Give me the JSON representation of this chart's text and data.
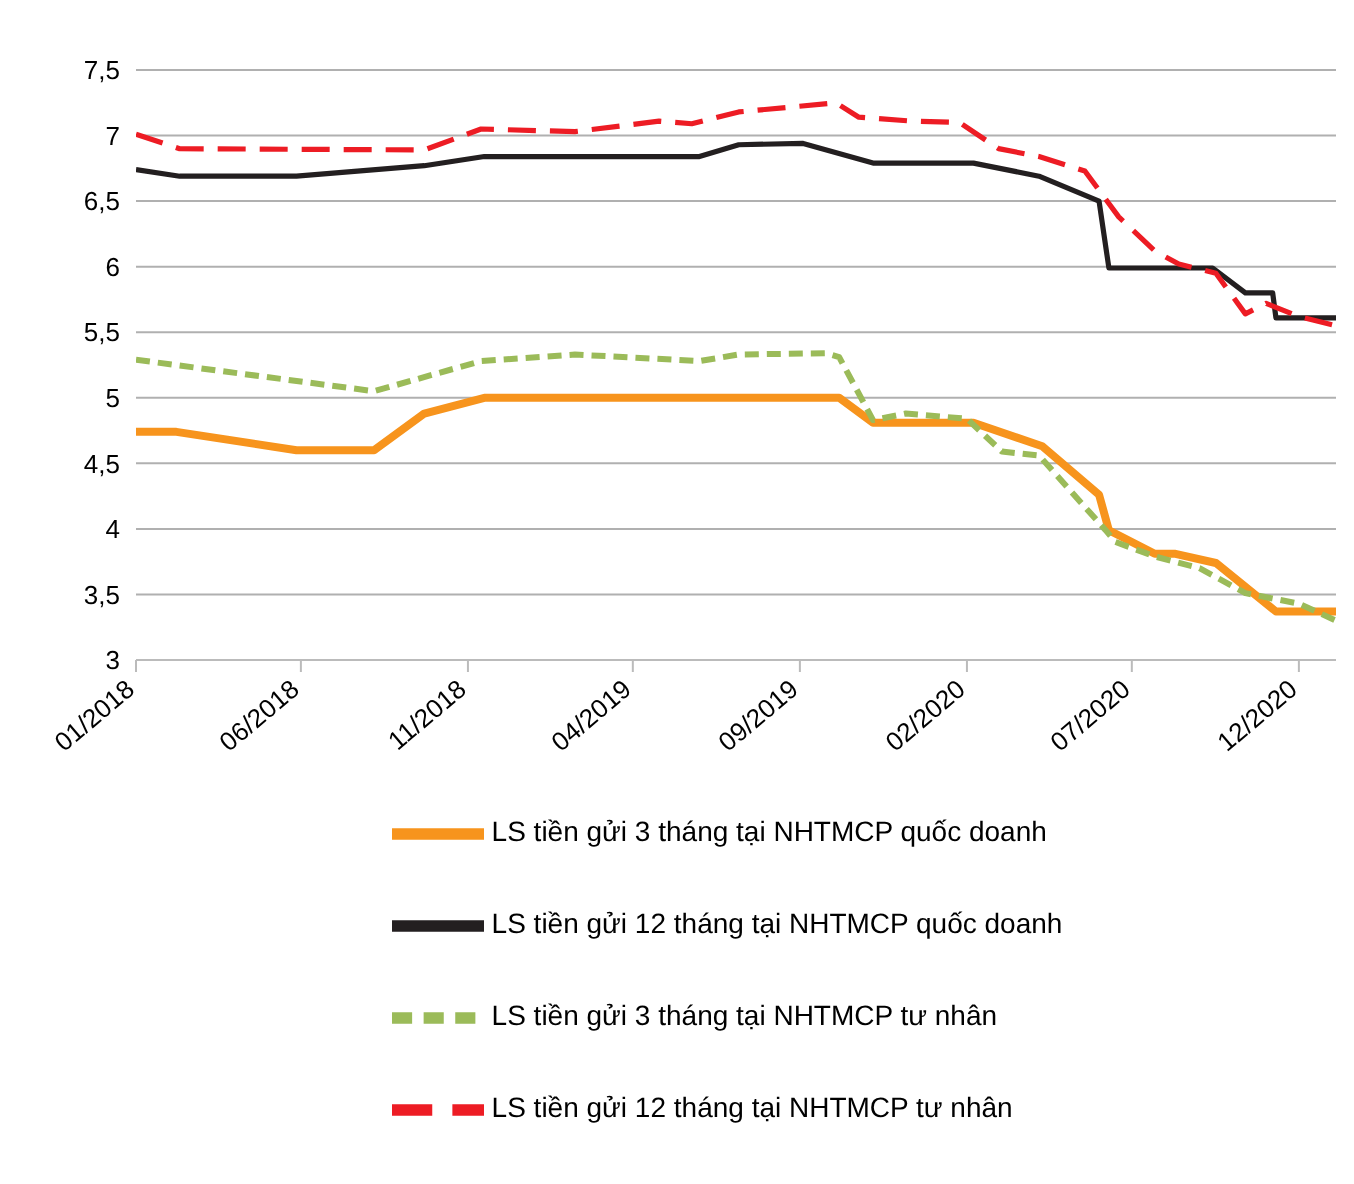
{
  "chart_data": {
    "type": "line",
    "xlim": [
      "2018-01-01",
      "2021-01-04"
    ],
    "xticks": [
      {
        "value": "2018-01-01",
        "label": "01/2018"
      },
      {
        "value": "2018-06-01",
        "label": "06/2018"
      },
      {
        "value": "2018-11-01",
        "label": "11/2018"
      },
      {
        "value": "2019-04-01",
        "label": "04/2019"
      },
      {
        "value": "2019-09-01",
        "label": "09/2019"
      },
      {
        "value": "2020-02-01",
        "label": "02/2020"
      },
      {
        "value": "2020-07-01",
        "label": "07/2020"
      },
      {
        "value": "2020-12-01",
        "label": "12/2020"
      }
    ],
    "ylim": [
      3,
      7.5
    ],
    "yticks": [
      3,
      {
        "value": 3.5,
        "label": "3,5"
      },
      4,
      {
        "value": 4.5,
        "label": "4,5"
      },
      5,
      {
        "value": 5.5,
        "label": "5,5"
      },
      6,
      {
        "value": 6.5,
        "label": "6,5"
      },
      7,
      {
        "value": 7.5,
        "label": "7,5"
      }
    ],
    "grid": "y",
    "legend": "bottom",
    "marker": "none",
    "series": [
      {
        "name": "LS tiền gửi 3 tháng tại NHTMCP quốc doanh",
        "color": "#f7941d",
        "line_style": "solid",
        "x": [
          "2018-01-01",
          "2018-02-07",
          "2018-05-28",
          "2018-08-07",
          "2018-09-22",
          "2018-11-16",
          "2019-10-07",
          "2019-11-07",
          "2020-02-07",
          "2020-04-10",
          "2020-06-01",
          "2020-06-10",
          "2020-07-22",
          "2020-08-10",
          "2020-09-16",
          "2020-11-10",
          "2021-01-04"
        ],
        "values": [
          4.74,
          4.74,
          4.6,
          4.6,
          4.88,
          5.0,
          5.0,
          4.81,
          4.81,
          4.63,
          4.26,
          3.99,
          3.81,
          3.81,
          3.74,
          3.37,
          3.37
        ]
      },
      {
        "name": "LS tiền gửi 12 tháng tại NHTMCP quốc doanh",
        "color": "#231f20",
        "line_style": "solid",
        "x": [
          "2018-01-01",
          "2018-02-10",
          "2018-05-28",
          "2018-09-22",
          "2018-11-16",
          "2019-06-01",
          "2019-07-07",
          "2019-09-04",
          "2019-11-07",
          "2020-02-07",
          "2020-04-07",
          "2020-06-01",
          "2020-06-10",
          "2020-09-13",
          "2020-10-13",
          "2020-11-07",
          "2020-11-10",
          "2021-01-04"
        ],
        "values": [
          6.74,
          6.69,
          6.69,
          6.77,
          6.84,
          6.84,
          6.93,
          6.94,
          6.79,
          6.79,
          6.69,
          6.5,
          5.99,
          5.99,
          5.8,
          5.8,
          5.61,
          5.61
        ]
      },
      {
        "name": "LS tiền gửi 3 tháng tại NHTMCP tư nhân",
        "color": "#9bbb59",
        "line_style": "dotted",
        "x": [
          "2018-01-01",
          "2018-08-07",
          "2018-11-13",
          "2019-02-07",
          "2019-06-01",
          "2019-07-07",
          "2019-09-25",
          "2019-10-07",
          "2019-11-07",
          "2019-12-07",
          "2020-02-01",
          "2020-03-04",
          "2020-04-07",
          "2020-06-07",
          "2020-06-16",
          "2020-07-22",
          "2020-09-01",
          "2020-10-13",
          "2020-12-01",
          "2021-01-04"
        ],
        "values": [
          5.29,
          5.05,
          5.28,
          5.33,
          5.28,
          5.33,
          5.34,
          5.31,
          4.83,
          4.88,
          4.84,
          4.59,
          4.56,
          3.99,
          3.9,
          3.79,
          3.7,
          3.51,
          3.43,
          3.3
        ]
      },
      {
        "name": "LS tiền gửi 12 tháng tại NHTMCP tư nhân",
        "color": "#ed1c24",
        "line_style": "dashed",
        "x": [
          "2018-01-01",
          "2018-02-10",
          "2018-09-22",
          "2018-11-13",
          "2019-02-07",
          "2019-04-25",
          "2019-05-25",
          "2019-07-07",
          "2019-10-04",
          "2019-10-25",
          "2019-12-13",
          "2020-01-25",
          "2020-03-01",
          "2020-04-07",
          "2020-05-19",
          "2020-06-19",
          "2020-07-22",
          "2020-08-13",
          "2020-09-16",
          "2020-10-13",
          "2020-11-01",
          "2020-12-01",
          "2021-01-04"
        ],
        "values": [
          7.01,
          6.9,
          6.89,
          7.05,
          7.03,
          7.11,
          7.09,
          7.18,
          7.25,
          7.14,
          7.11,
          7.1,
          6.9,
          6.84,
          6.73,
          6.38,
          6.12,
          6.02,
          5.95,
          5.64,
          5.72,
          5.62,
          5.55
        ]
      }
    ]
  }
}
